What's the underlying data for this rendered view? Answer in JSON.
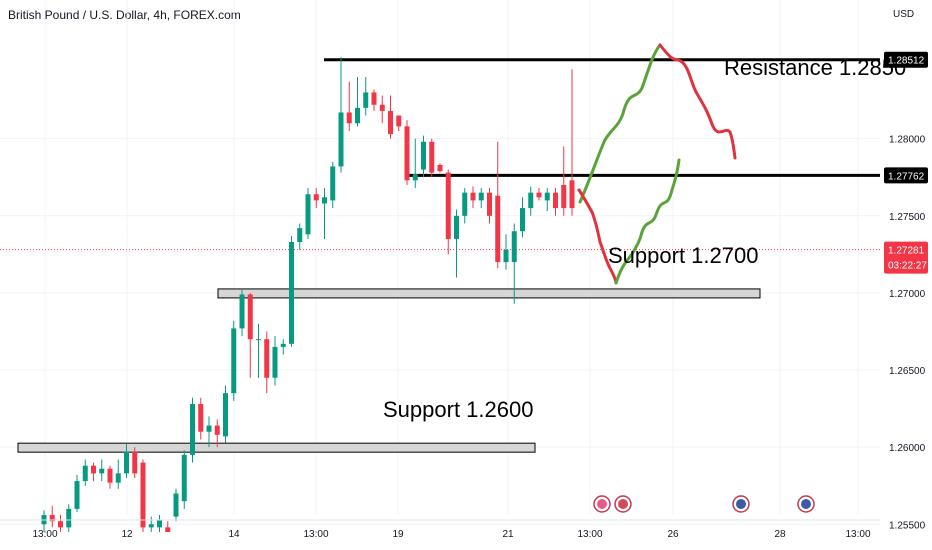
{
  "header": {
    "title": "British Pound / U.S. Dollar, 4h, FOREX.com",
    "currency": "USD"
  },
  "chart_data": {
    "type": "candlestick",
    "ylim": [
      1.2545,
      1.2875
    ],
    "y_ticks": [
      "1.28000",
      "1.27500",
      "1.27000",
      "1.26500",
      "1.26000",
      "1.25500"
    ],
    "x_ticks": [
      "13:00",
      "12",
      "14",
      "13:00",
      "19",
      "21",
      "13:00",
      "26",
      "28",
      "13:00"
    ],
    "price_tags": [
      {
        "label": "1.28512",
        "value": 1.28512,
        "style": "black"
      },
      {
        "label": "1.27762",
        "value": 1.27762,
        "style": "black"
      },
      {
        "label": "1.27281",
        "value": 1.27281,
        "style": "red",
        "sub": "03:22:27"
      }
    ],
    "candles": [
      [
        1.255,
        1.2556,
        1.2545,
        1.2559
      ],
      [
        1.2556,
        1.2552,
        1.2548,
        1.2562
      ],
      [
        1.2552,
        1.2548,
        1.2545,
        1.2556
      ],
      [
        1.2548,
        1.256,
        1.2545,
        1.2563
      ],
      [
        1.256,
        1.2578,
        1.2558,
        1.2582
      ],
      [
        1.2578,
        1.2588,
        1.2575,
        1.2592
      ],
      [
        1.2588,
        1.2583,
        1.2578,
        1.259
      ],
      [
        1.2583,
        1.2586,
        1.2578,
        1.2592
      ],
      [
        1.2586,
        1.2577,
        1.2573,
        1.2588
      ],
      [
        1.2577,
        1.2583,
        1.2573,
        1.2592
      ],
      [
        1.2583,
        1.2597,
        1.258,
        1.2602
      ],
      [
        1.2597,
        1.2583,
        1.258,
        1.26
      ],
      [
        1.259,
        1.2548,
        1.2545,
        1.2592
      ],
      [
        1.2548,
        1.255,
        1.2545,
        1.2555
      ],
      [
        1.2548,
        1.2553,
        1.2545,
        1.2556
      ],
      [
        1.2548,
        1.2545,
        1.2545,
        1.2552
      ],
      [
        1.2555,
        1.257,
        1.2552,
        1.2573
      ],
      [
        1.2565,
        1.2595,
        1.256,
        1.2598
      ],
      [
        1.2595,
        1.2628,
        1.259,
        1.2632
      ],
      [
        1.2628,
        1.261,
        1.2605,
        1.2632
      ],
      [
        1.261,
        1.2614,
        1.26,
        1.262
      ],
      [
        1.2614,
        1.2608,
        1.26,
        1.2618
      ],
      [
        1.2607,
        1.2635,
        1.2603,
        1.264
      ],
      [
        1.2635,
        1.2677,
        1.263,
        1.2682
      ],
      [
        1.2677,
        1.2699,
        1.2672,
        1.2702
      ],
      [
        1.2699,
        1.267,
        1.2645,
        1.27
      ],
      [
        1.267,
        1.267,
        1.2645,
        1.268
      ],
      [
        1.267,
        1.2645,
        1.2635,
        1.2675
      ],
      [
        1.2645,
        1.2665,
        1.264,
        1.2672
      ],
      [
        1.2665,
        1.2667,
        1.266,
        1.267
      ],
      [
        1.2667,
        1.2733,
        1.2665,
        1.2737
      ],
      [
        1.2733,
        1.2742,
        1.2728,
        1.2745
      ],
      [
        1.2738,
        1.2764,
        1.2735,
        1.2768
      ],
      [
        1.2764,
        1.276,
        1.2755,
        1.2768
      ],
      [
        1.2758,
        1.2762,
        1.2735,
        1.2768
      ],
      [
        1.276,
        1.2782,
        1.2755,
        1.2785
      ],
      [
        1.2782,
        1.2817,
        1.2778,
        1.2853
      ],
      [
        1.2817,
        1.281,
        1.2805,
        1.2837
      ],
      [
        1.281,
        1.282,
        1.2808,
        1.284
      ],
      [
        1.282,
        1.283,
        1.2815,
        1.284
      ],
      [
        1.283,
        1.2822,
        1.2818,
        1.2832
      ],
      [
        1.2822,
        1.2818,
        1.281,
        1.2828
      ],
      [
        1.2818,
        1.2803,
        1.28,
        1.2828
      ],
      [
        1.2815,
        1.2808,
        1.2805,
        1.2815
      ],
      [
        1.2808,
        1.2773,
        1.277,
        1.2812
      ],
      [
        1.2773,
        1.2777,
        1.2768,
        1.28
      ],
      [
        1.278,
        1.2798,
        1.2775,
        1.2802
      ],
      [
        1.2798,
        1.2778,
        1.2775,
        1.28
      ],
      [
        1.2783,
        1.2779,
        1.2778,
        1.2784
      ],
      [
        1.2778,
        1.2735,
        1.2725,
        1.278
      ],
      [
        1.2735,
        1.275,
        1.271,
        1.2754
      ],
      [
        1.275,
        1.2765,
        1.2745,
        1.2768
      ],
      [
        1.2765,
        1.276,
        1.2755,
        1.2769
      ],
      [
        1.276,
        1.2765,
        1.2755,
        1.2768
      ],
      [
        1.2765,
        1.275,
        1.2745,
        1.2768
      ],
      [
        1.2763,
        1.272,
        1.2716,
        1.2798
      ],
      [
        1.272,
        1.2728,
        1.2715,
        1.2738
      ],
      [
        1.272,
        1.274,
        1.2693,
        1.2745
      ],
      [
        1.274,
        1.2755,
        1.2736,
        1.2762
      ],
      [
        1.2755,
        1.2765,
        1.275,
        1.2769
      ],
      [
        1.2765,
        1.2762,
        1.276,
        1.2768
      ],
      [
        1.276,
        1.2765,
        1.2753,
        1.2768
      ],
      [
        1.2765,
        1.2755,
        1.275,
        1.2768
      ],
      [
        1.277,
        1.2755,
        1.275,
        1.2795
      ],
      [
        1.2773,
        1.2755,
        1.275,
        1.2845
      ]
    ],
    "levels": [
      {
        "label": "Resistance 1.2850",
        "value": 1.28512
      },
      {
        "label": "1.27762 level",
        "value": 1.27762
      }
    ],
    "zones": [
      {
        "label": "Support 1.2700",
        "value": 1.27
      },
      {
        "label": "Support 1.2600",
        "value": 1.26
      }
    ]
  },
  "annotations": {
    "resistance": "Resistance 1.2850",
    "support1": "Support 1.2700",
    "support2": "Support 1.2600"
  },
  "colors": {
    "up": "#089981",
    "down": "#f23645",
    "projection_up": "#5aa33a",
    "projection_down": "#e0323c"
  }
}
